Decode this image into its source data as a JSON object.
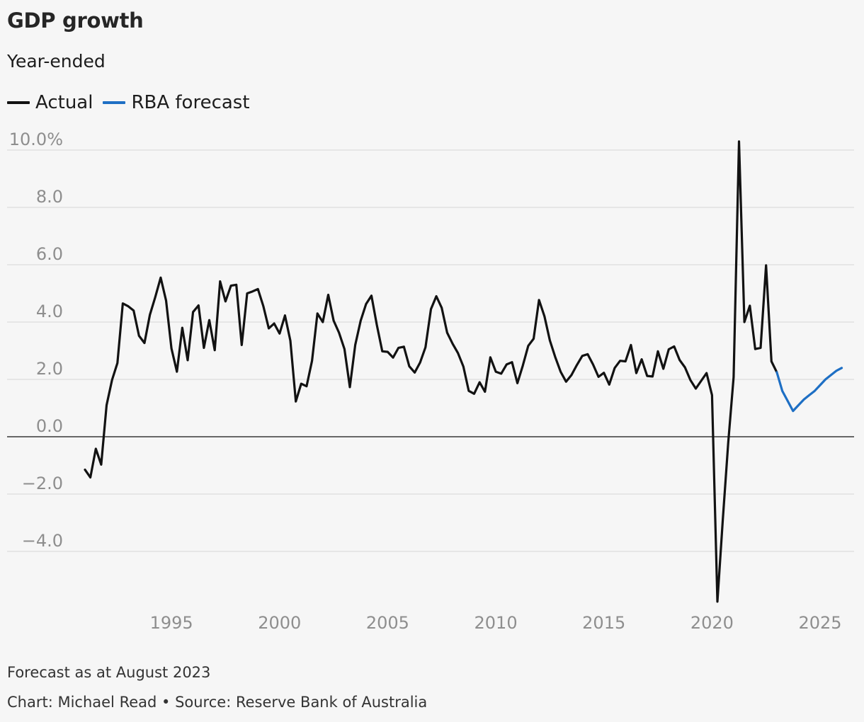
{
  "chart_data": {
    "type": "line",
    "title": "GDP growth",
    "subtitle": "Year-ended",
    "legend_placement": "top-left",
    "grid": true,
    "ylim": [
      -5.8,
      10.4
    ],
    "xlim": [
      1990.5,
      2026.3
    ],
    "y_ticks": [
      10,
      8,
      6,
      4,
      2,
      0,
      -2,
      -4
    ],
    "y_tick_labels": [
      "10.0%",
      "8.0",
      "6.0",
      "4.0",
      "2.0",
      "0.0",
      "−2.0",
      "−4.0"
    ],
    "x_ticks": [
      1995,
      2000,
      2005,
      2010,
      2015,
      2020,
      2025
    ],
    "x_tick_labels": [
      "1995",
      "2000",
      "2005",
      "2010",
      "2015",
      "2020",
      "2025"
    ],
    "series": [
      {
        "name": "Actual",
        "color": "#121212",
        "x": [
          1991.0,
          1991.25,
          1991.5,
          1991.75,
          1992.0,
          1992.25,
          1992.5,
          1992.75,
          1993.0,
          1993.25,
          1993.5,
          1993.75,
          1994.0,
          1994.25,
          1994.5,
          1994.75,
          1995.0,
          1995.25,
          1995.5,
          1995.75,
          1996.0,
          1996.25,
          1996.5,
          1996.75,
          1997.0,
          1997.25,
          1997.5,
          1997.75,
          1998.0,
          1998.25,
          1998.5,
          1998.75,
          1999.0,
          1999.25,
          1999.5,
          1999.75,
          2000.0,
          2000.25,
          2000.5,
          2000.75,
          2001.0,
          2001.25,
          2001.5,
          2001.75,
          2002.0,
          2002.25,
          2002.5,
          2002.75,
          2003.0,
          2003.25,
          2003.5,
          2003.75,
          2004.0,
          2004.25,
          2004.5,
          2004.75,
          2005.0,
          2005.25,
          2005.5,
          2005.75,
          2006.0,
          2006.25,
          2006.5,
          2006.75,
          2007.0,
          2007.25,
          2007.5,
          2007.75,
          2008.0,
          2008.25,
          2008.5,
          2008.75,
          2009.0,
          2009.25,
          2009.5,
          2009.75,
          2010.0,
          2010.25,
          2010.5,
          2010.75,
          2011.0,
          2011.25,
          2011.5,
          2011.75,
          2012.0,
          2012.25,
          2012.5,
          2012.75,
          2013.0,
          2013.25,
          2013.5,
          2013.75,
          2014.0,
          2014.25,
          2014.5,
          2014.75,
          2015.0,
          2015.25,
          2015.5,
          2015.75,
          2016.0,
          2016.25,
          2016.5,
          2016.75,
          2017.0,
          2017.25,
          2017.5,
          2017.75,
          2018.0,
          2018.25,
          2018.5,
          2018.75,
          2019.0,
          2019.25,
          2019.5,
          2019.75,
          2020.0,
          2020.25,
          2020.5,
          2020.75,
          2021.0,
          2021.25,
          2021.5,
          2021.75,
          2022.0,
          2022.25,
          2022.5,
          2022.75,
          2023.0
        ],
        "values": [
          -1.15,
          -1.42,
          -0.42,
          -0.97,
          1.1,
          1.98,
          2.57,
          4.65,
          4.55,
          4.4,
          3.52,
          3.27,
          4.25,
          4.87,
          5.55,
          4.75,
          3.08,
          2.27,
          3.8,
          2.67,
          4.35,
          4.58,
          3.1,
          4.07,
          3.02,
          5.42,
          4.72,
          5.27,
          5.3,
          3.2,
          5.0,
          5.07,
          5.15,
          4.55,
          3.78,
          3.95,
          3.6,
          4.23,
          3.35,
          1.23,
          1.85,
          1.76,
          2.65,
          4.3,
          4.0,
          4.95,
          4.05,
          3.63,
          3.06,
          1.73,
          3.2,
          4.05,
          4.63,
          4.92,
          3.9,
          2.98,
          2.96,
          2.76,
          3.1,
          3.14,
          2.46,
          2.24,
          2.59,
          3.12,
          4.45,
          4.9,
          4.5,
          3.63,
          3.25,
          2.92,
          2.45,
          1.6,
          1.5,
          1.9,
          1.57,
          2.77,
          2.27,
          2.2,
          2.52,
          2.6,
          1.87,
          2.48,
          3.17,
          3.42,
          4.77,
          4.2,
          3.36,
          2.78,
          2.27,
          1.92,
          2.15,
          2.5,
          2.82,
          2.88,
          2.52,
          2.09,
          2.23,
          1.82,
          2.4,
          2.65,
          2.63,
          3.2,
          2.22,
          2.7,
          2.12,
          2.1,
          2.98,
          2.37,
          3.05,
          3.15,
          2.68,
          2.42,
          1.98,
          1.68,
          1.95,
          2.22,
          1.45,
          -5.75,
          -2.9,
          -0.2,
          2.08,
          10.3,
          4.0,
          4.57,
          3.06,
          3.1,
          5.98,
          2.63,
          2.25
        ]
      },
      {
        "name": "RBA forecast",
        "color": "#1e6fc4",
        "x": [
          2023.0,
          2023.25,
          2023.5,
          2023.75,
          2024.0,
          2024.25,
          2024.5,
          2024.75,
          2025.0,
          2025.25,
          2025.5,
          2025.75,
          2026.0
        ],
        "values": [
          2.25,
          1.6,
          1.25,
          0.9,
          1.1,
          1.3,
          1.45,
          1.6,
          1.8,
          2.0,
          2.15,
          2.3,
          2.4
        ]
      }
    ]
  },
  "footer": {
    "note": "Forecast as at August 2023",
    "source": "Chart: Michael Read • Source: Reserve Bank of Australia"
  }
}
